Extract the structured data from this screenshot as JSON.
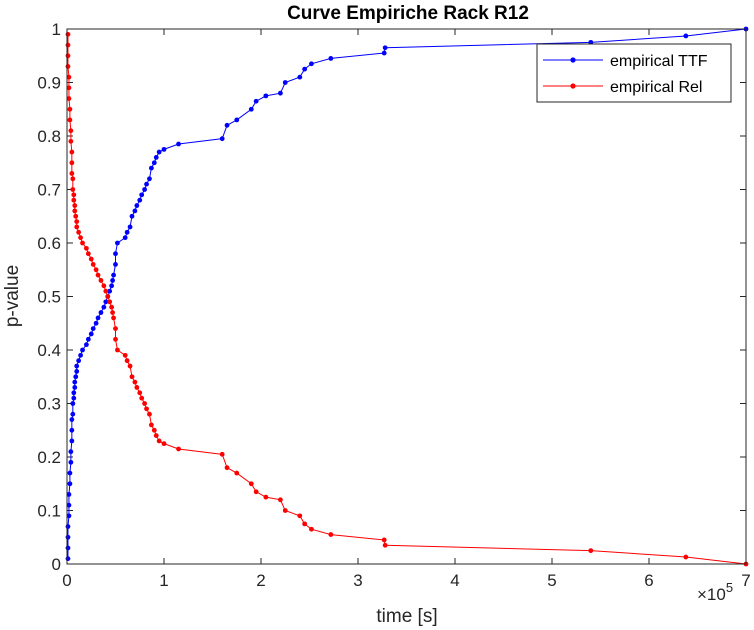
{
  "chart_data": {
    "type": "line",
    "title": "Curve Empiriche Rack R12",
    "xlabel": "time [s]",
    "ylabel": "p-value",
    "xlim": [
      0,
      7
    ],
    "ylim": [
      0,
      1
    ],
    "x_multiplier_label": "×10",
    "x_multiplier_exponent": "5",
    "x_ticks": [
      "0",
      "1",
      "2",
      "3",
      "4",
      "5",
      "6",
      "7"
    ],
    "y_ticks": [
      "0",
      "0.1",
      "0.2",
      "0.3",
      "0.4",
      "0.5",
      "0.6",
      "0.7",
      "0.8",
      "0.9",
      "1"
    ],
    "grid": false,
    "legend_position": "top-right",
    "series": [
      {
        "name": "empirical TTF",
        "color": "#0000ff",
        "x": [
          0.01,
          0.01,
          0.01,
          0.01,
          0.02,
          0.02,
          0.02,
          0.03,
          0.03,
          0.04,
          0.04,
          0.05,
          0.05,
          0.05,
          0.06,
          0.06,
          0.07,
          0.07,
          0.08,
          0.08,
          0.09,
          0.1,
          0.1,
          0.12,
          0.14,
          0.16,
          0.2,
          0.22,
          0.25,
          0.27,
          0.3,
          0.32,
          0.35,
          0.38,
          0.4,
          0.42,
          0.44,
          0.46,
          0.47,
          0.48,
          0.5,
          0.5,
          0.52,
          0.6,
          0.62,
          0.65,
          0.67,
          0.7,
          0.72,
          0.75,
          0.77,
          0.8,
          0.82,
          0.85,
          0.87,
          0.9,
          0.92,
          0.95,
          1.0,
          1.15,
          1.6,
          1.65,
          1.75,
          1.9,
          1.95,
          2.05,
          2.2,
          2.25,
          2.4,
          2.45,
          2.52,
          2.72,
          3.27,
          3.28,
          5.4,
          6.38,
          7.0
        ],
        "y": [
          0.01,
          0.03,
          0.05,
          0.07,
          0.09,
          0.11,
          0.13,
          0.15,
          0.17,
          0.19,
          0.21,
          0.23,
          0.25,
          0.27,
          0.28,
          0.3,
          0.31,
          0.32,
          0.33,
          0.34,
          0.35,
          0.36,
          0.37,
          0.38,
          0.39,
          0.4,
          0.41,
          0.42,
          0.43,
          0.44,
          0.45,
          0.46,
          0.47,
          0.48,
          0.49,
          0.5,
          0.51,
          0.52,
          0.53,
          0.54,
          0.56,
          0.58,
          0.6,
          0.61,
          0.62,
          0.63,
          0.65,
          0.66,
          0.67,
          0.68,
          0.69,
          0.7,
          0.71,
          0.72,
          0.74,
          0.75,
          0.76,
          0.77,
          0.775,
          0.785,
          0.795,
          0.82,
          0.83,
          0.85,
          0.865,
          0.875,
          0.88,
          0.9,
          0.91,
          0.925,
          0.935,
          0.945,
          0.955,
          0.965,
          0.975,
          0.987,
          1.0
        ]
      },
      {
        "name": "empirical Rel",
        "color": "#ff0000",
        "x": [
          0.01,
          0.01,
          0.01,
          0.01,
          0.02,
          0.02,
          0.02,
          0.03,
          0.03,
          0.04,
          0.04,
          0.05,
          0.05,
          0.05,
          0.06,
          0.06,
          0.07,
          0.07,
          0.08,
          0.08,
          0.09,
          0.1,
          0.1,
          0.12,
          0.14,
          0.16,
          0.2,
          0.22,
          0.25,
          0.27,
          0.3,
          0.32,
          0.35,
          0.38,
          0.4,
          0.42,
          0.44,
          0.46,
          0.47,
          0.48,
          0.5,
          0.5,
          0.52,
          0.6,
          0.62,
          0.65,
          0.67,
          0.7,
          0.72,
          0.75,
          0.77,
          0.8,
          0.82,
          0.85,
          0.87,
          0.9,
          0.92,
          0.95,
          1.0,
          1.15,
          1.6,
          1.65,
          1.75,
          1.9,
          1.95,
          2.05,
          2.2,
          2.25,
          2.4,
          2.45,
          2.52,
          2.72,
          3.27,
          3.28,
          5.4,
          6.38,
          7.0
        ],
        "y": [
          0.99,
          0.97,
          0.95,
          0.93,
          0.91,
          0.89,
          0.87,
          0.85,
          0.83,
          0.81,
          0.79,
          0.77,
          0.75,
          0.73,
          0.72,
          0.7,
          0.69,
          0.68,
          0.67,
          0.66,
          0.65,
          0.64,
          0.63,
          0.62,
          0.61,
          0.6,
          0.59,
          0.58,
          0.57,
          0.56,
          0.55,
          0.54,
          0.53,
          0.52,
          0.51,
          0.5,
          0.49,
          0.48,
          0.47,
          0.46,
          0.44,
          0.42,
          0.4,
          0.39,
          0.38,
          0.37,
          0.35,
          0.34,
          0.33,
          0.32,
          0.31,
          0.3,
          0.29,
          0.28,
          0.26,
          0.25,
          0.24,
          0.23,
          0.225,
          0.215,
          0.205,
          0.18,
          0.17,
          0.15,
          0.135,
          0.125,
          0.12,
          0.1,
          0.09,
          0.075,
          0.065,
          0.055,
          0.045,
          0.035,
          0.025,
          0.013,
          0.0
        ]
      }
    ]
  }
}
